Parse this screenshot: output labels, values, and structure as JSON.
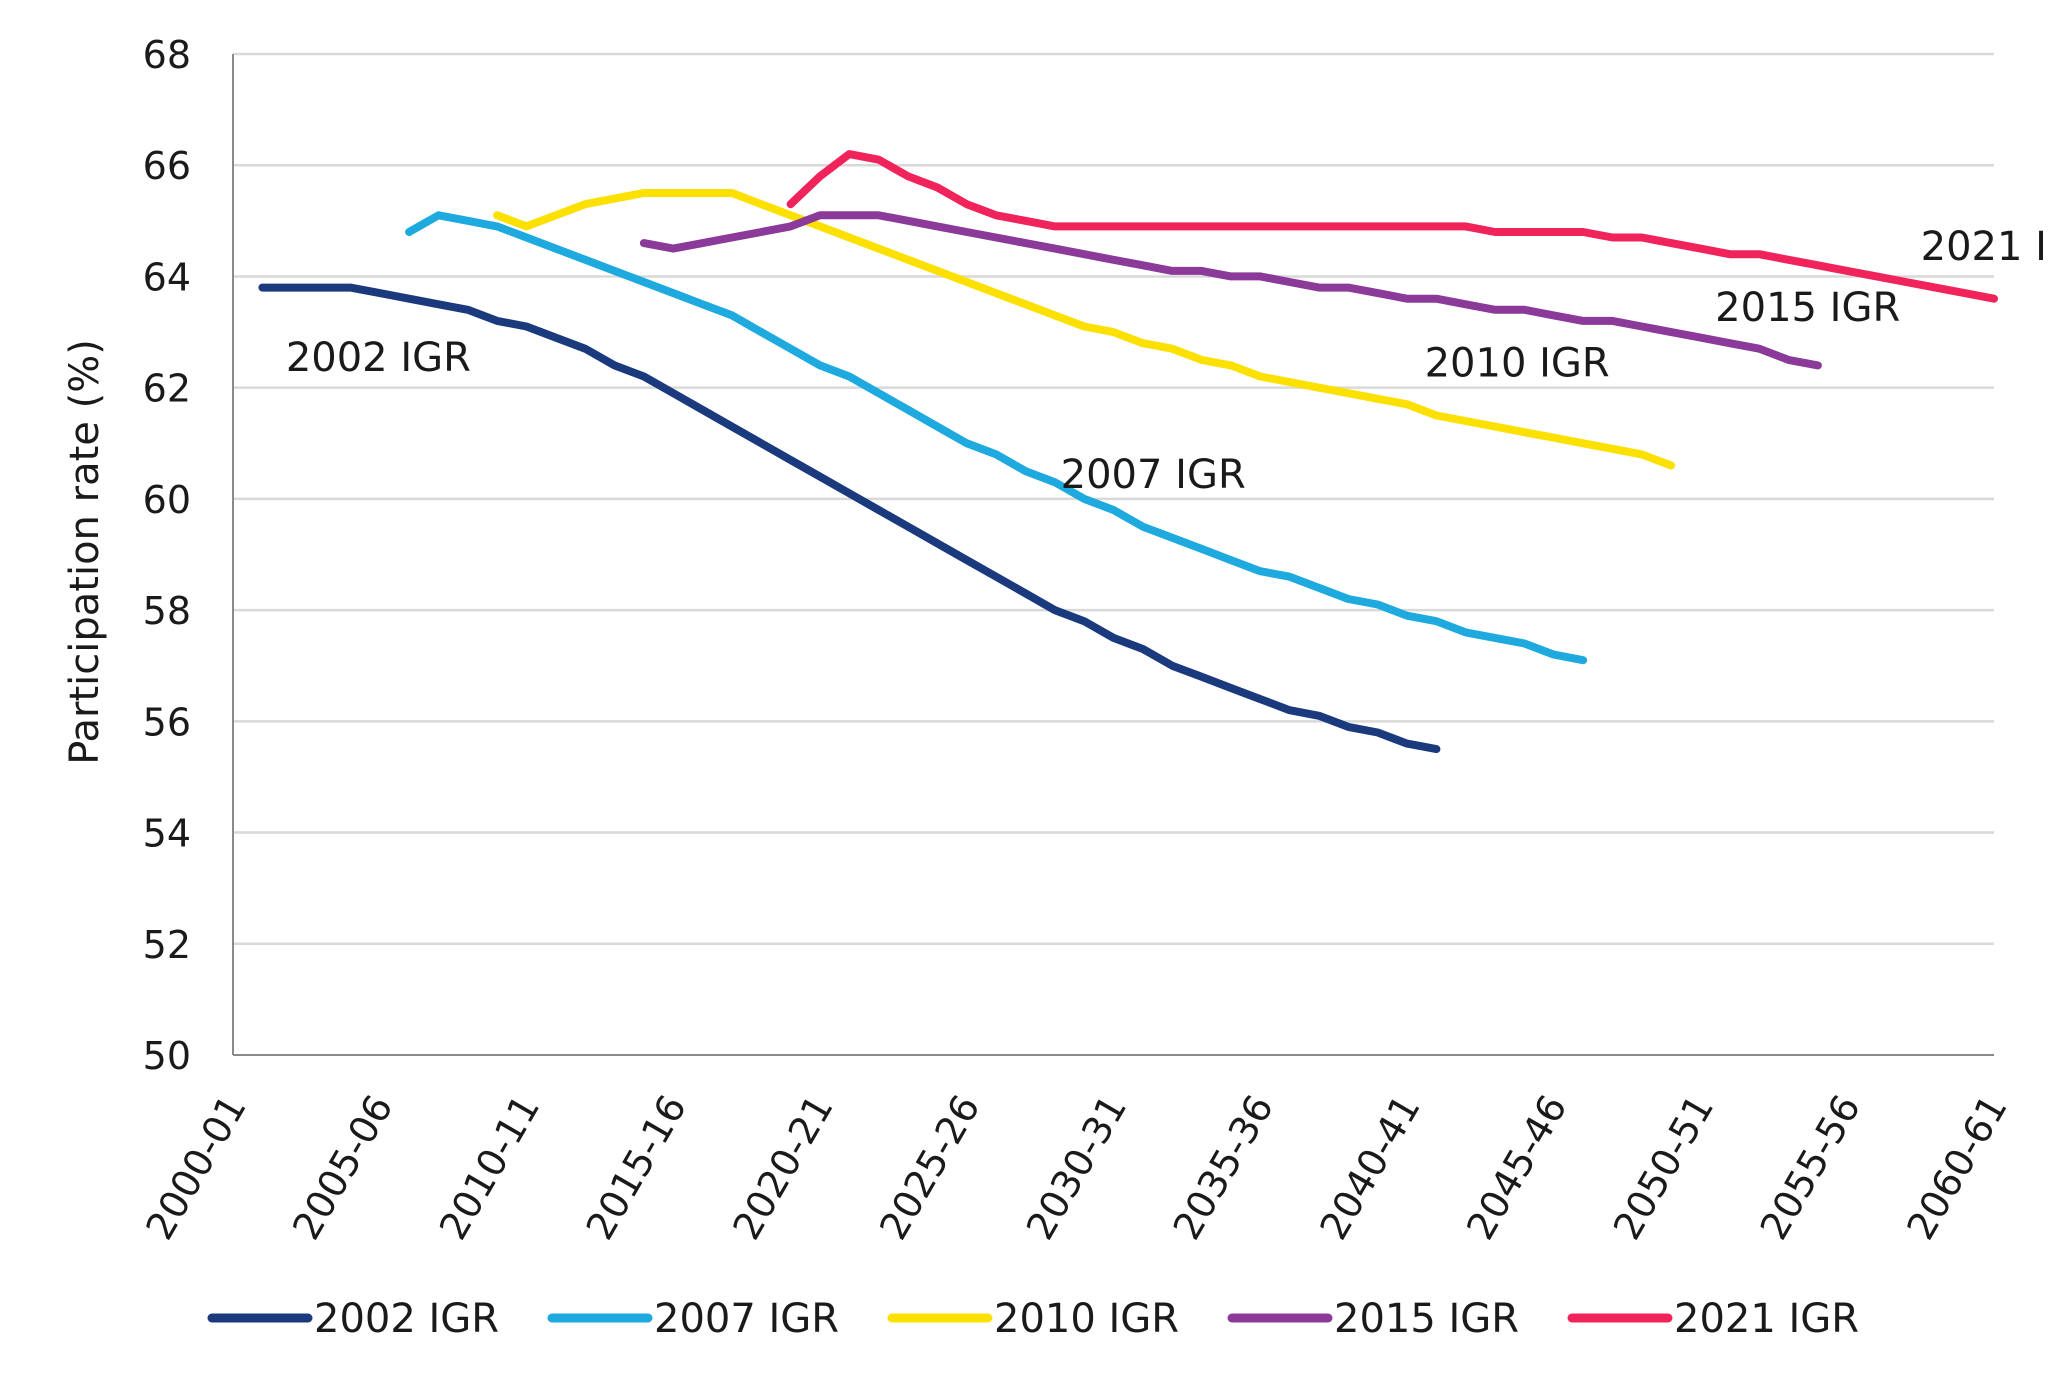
{
  "chart_data": {
    "type": "line",
    "title": "",
    "xlabel": "",
    "ylabel": "Participation rate (%)",
    "ylim": [
      50,
      68
    ],
    "yticks": [
      50,
      52,
      54,
      56,
      58,
      60,
      62,
      64,
      66,
      68
    ],
    "xlim": [
      2000,
      2060
    ],
    "xtick_labels": [
      "2000-01",
      "2005-06",
      "2010-11",
      "2015-16",
      "2020-21",
      "2025-26",
      "2030-31",
      "2035-36",
      "2040-41",
      "2045-46",
      "2050-51",
      "2055-56",
      "2060-61"
    ],
    "x_axis": "financial year starting (e.g. 2000 = 2000-01)",
    "grid": "horizontal",
    "legend": "bottom",
    "series": [
      {
        "name": "2002 IGR",
        "color": "#1b3a7d",
        "label": "2002 IGR",
        "points": [
          [
            2001,
            63.8
          ],
          [
            2002,
            63.8
          ],
          [
            2003,
            63.8
          ],
          [
            2004,
            63.8
          ],
          [
            2005,
            63.7
          ],
          [
            2006,
            63.6
          ],
          [
            2007,
            63.5
          ],
          [
            2008,
            63.4
          ],
          [
            2009,
            63.2
          ],
          [
            2010,
            63.1
          ],
          [
            2011,
            62.9
          ],
          [
            2012,
            62.7
          ],
          [
            2013,
            62.4
          ],
          [
            2014,
            62.2
          ],
          [
            2015,
            61.9
          ],
          [
            2016,
            61.6
          ],
          [
            2017,
            61.3
          ],
          [
            2018,
            61.0
          ],
          [
            2019,
            60.7
          ],
          [
            2020,
            60.4
          ],
          [
            2021,
            60.1
          ],
          [
            2022,
            59.8
          ],
          [
            2023,
            59.5
          ],
          [
            2024,
            59.2
          ],
          [
            2025,
            58.9
          ],
          [
            2026,
            58.6
          ],
          [
            2027,
            58.3
          ],
          [
            2028,
            58.0
          ],
          [
            2029,
            57.8
          ],
          [
            2030,
            57.5
          ],
          [
            2031,
            57.3
          ],
          [
            2032,
            57.0
          ],
          [
            2033,
            56.8
          ],
          [
            2034,
            56.6
          ],
          [
            2035,
            56.4
          ],
          [
            2036,
            56.2
          ],
          [
            2037,
            56.1
          ],
          [
            2038,
            55.9
          ],
          [
            2039,
            55.8
          ],
          [
            2040,
            55.6
          ],
          [
            2041,
            55.5
          ]
        ]
      },
      {
        "name": "2007 IGR",
        "color": "#1ea9df",
        "label": "2007 IGR",
        "points": [
          [
            2006,
            64.8
          ],
          [
            2007,
            65.1
          ],
          [
            2008,
            65.0
          ],
          [
            2009,
            64.9
          ],
          [
            2010,
            64.7
          ],
          [
            2011,
            64.5
          ],
          [
            2012,
            64.3
          ],
          [
            2013,
            64.1
          ],
          [
            2014,
            63.9
          ],
          [
            2015,
            63.7
          ],
          [
            2016,
            63.5
          ],
          [
            2017,
            63.3
          ],
          [
            2018,
            63.0
          ],
          [
            2019,
            62.7
          ],
          [
            2020,
            62.4
          ],
          [
            2021,
            62.2
          ],
          [
            2022,
            61.9
          ],
          [
            2023,
            61.6
          ],
          [
            2024,
            61.3
          ],
          [
            2025,
            61.0
          ],
          [
            2026,
            60.8
          ],
          [
            2027,
            60.5
          ],
          [
            2028,
            60.3
          ],
          [
            2029,
            60.0
          ],
          [
            2030,
            59.8
          ],
          [
            2031,
            59.5
          ],
          [
            2032,
            59.3
          ],
          [
            2033,
            59.1
          ],
          [
            2034,
            58.9
          ],
          [
            2035,
            58.7
          ],
          [
            2036,
            58.6
          ],
          [
            2037,
            58.4
          ],
          [
            2038,
            58.2
          ],
          [
            2039,
            58.1
          ],
          [
            2040,
            57.9
          ],
          [
            2041,
            57.8
          ],
          [
            2042,
            57.6
          ],
          [
            2043,
            57.5
          ],
          [
            2044,
            57.4
          ],
          [
            2045,
            57.2
          ],
          [
            2046,
            57.1
          ]
        ]
      },
      {
        "name": "2010 IGR",
        "color": "#fce000",
        "label": "2010 IGR",
        "points": [
          [
            2009,
            65.1
          ],
          [
            2010,
            64.9
          ],
          [
            2011,
            65.1
          ],
          [
            2012,
            65.3
          ],
          [
            2013,
            65.4
          ],
          [
            2014,
            65.5
          ],
          [
            2015,
            65.5
          ],
          [
            2016,
            65.5
          ],
          [
            2017,
            65.5
          ],
          [
            2018,
            65.3
          ],
          [
            2019,
            65.1
          ],
          [
            2020,
            64.9
          ],
          [
            2021,
            64.7
          ],
          [
            2022,
            64.5
          ],
          [
            2023,
            64.3
          ],
          [
            2024,
            64.1
          ],
          [
            2025,
            63.9
          ],
          [
            2026,
            63.7
          ],
          [
            2027,
            63.5
          ],
          [
            2028,
            63.3
          ],
          [
            2029,
            63.1
          ],
          [
            2030,
            63.0
          ],
          [
            2031,
            62.8
          ],
          [
            2032,
            62.7
          ],
          [
            2033,
            62.5
          ],
          [
            2034,
            62.4
          ],
          [
            2035,
            62.2
          ],
          [
            2036,
            62.1
          ],
          [
            2037,
            62.0
          ],
          [
            2038,
            61.9
          ],
          [
            2039,
            61.8
          ],
          [
            2040,
            61.7
          ],
          [
            2041,
            61.5
          ],
          [
            2042,
            61.4
          ],
          [
            2043,
            61.3
          ],
          [
            2044,
            61.2
          ],
          [
            2045,
            61.1
          ],
          [
            2046,
            61.0
          ],
          [
            2047,
            60.9
          ],
          [
            2048,
            60.8
          ],
          [
            2049,
            60.6
          ]
        ]
      },
      {
        "name": "2015 IGR",
        "color": "#8b3a99",
        "label": "2015 IGR",
        "points": [
          [
            2014,
            64.6
          ],
          [
            2015,
            64.5
          ],
          [
            2016,
            64.6
          ],
          [
            2017,
            64.7
          ],
          [
            2018,
            64.8
          ],
          [
            2019,
            64.9
          ],
          [
            2020,
            65.1
          ],
          [
            2021,
            65.1
          ],
          [
            2022,
            65.1
          ],
          [
            2023,
            65.0
          ],
          [
            2024,
            64.9
          ],
          [
            2025,
            64.8
          ],
          [
            2026,
            64.7
          ],
          [
            2027,
            64.6
          ],
          [
            2028,
            64.5
          ],
          [
            2029,
            64.4
          ],
          [
            2030,
            64.3
          ],
          [
            2031,
            64.2
          ],
          [
            2032,
            64.1
          ],
          [
            2033,
            64.1
          ],
          [
            2034,
            64.0
          ],
          [
            2035,
            64.0
          ],
          [
            2036,
            63.9
          ],
          [
            2037,
            63.8
          ],
          [
            2038,
            63.8
          ],
          [
            2039,
            63.7
          ],
          [
            2040,
            63.6
          ],
          [
            2041,
            63.6
          ],
          [
            2042,
            63.5
          ],
          [
            2043,
            63.4
          ],
          [
            2044,
            63.4
          ],
          [
            2045,
            63.3
          ],
          [
            2046,
            63.2
          ],
          [
            2047,
            63.2
          ],
          [
            2048,
            63.1
          ],
          [
            2049,
            63.0
          ],
          [
            2050,
            62.9
          ],
          [
            2051,
            62.8
          ],
          [
            2052,
            62.7
          ],
          [
            2053,
            62.5
          ],
          [
            2054,
            62.4
          ]
        ]
      },
      {
        "name": "2021 IGR",
        "color": "#f0245a",
        "label": "2021 IGR",
        "points": [
          [
            2019,
            65.3
          ],
          [
            2020,
            65.8
          ],
          [
            2021,
            66.2
          ],
          [
            2022,
            66.1
          ],
          [
            2023,
            65.8
          ],
          [
            2024,
            65.6
          ],
          [
            2025,
            65.3
          ],
          [
            2026,
            65.1
          ],
          [
            2027,
            65.0
          ],
          [
            2028,
            64.9
          ],
          [
            2029,
            64.9
          ],
          [
            2030,
            64.9
          ],
          [
            2031,
            64.9
          ],
          [
            2032,
            64.9
          ],
          [
            2033,
            64.9
          ],
          [
            2034,
            64.9
          ],
          [
            2035,
            64.9
          ],
          [
            2036,
            64.9
          ],
          [
            2037,
            64.9
          ],
          [
            2038,
            64.9
          ],
          [
            2039,
            64.9
          ],
          [
            2040,
            64.9
          ],
          [
            2041,
            64.9
          ],
          [
            2042,
            64.9
          ],
          [
            2043,
            64.8
          ],
          [
            2044,
            64.8
          ],
          [
            2045,
            64.8
          ],
          [
            2046,
            64.8
          ],
          [
            2047,
            64.7
          ],
          [
            2048,
            64.7
          ],
          [
            2049,
            64.6
          ],
          [
            2050,
            64.5
          ],
          [
            2051,
            64.4
          ],
          [
            2052,
            64.4
          ],
          [
            2053,
            64.3
          ],
          [
            2054,
            64.2
          ],
          [
            2055,
            64.1
          ],
          [
            2056,
            64.0
          ],
          [
            2057,
            63.9
          ],
          [
            2058,
            63.8
          ],
          [
            2059,
            63.7
          ],
          [
            2060,
            63.6
          ]
        ]
      }
    ]
  }
}
